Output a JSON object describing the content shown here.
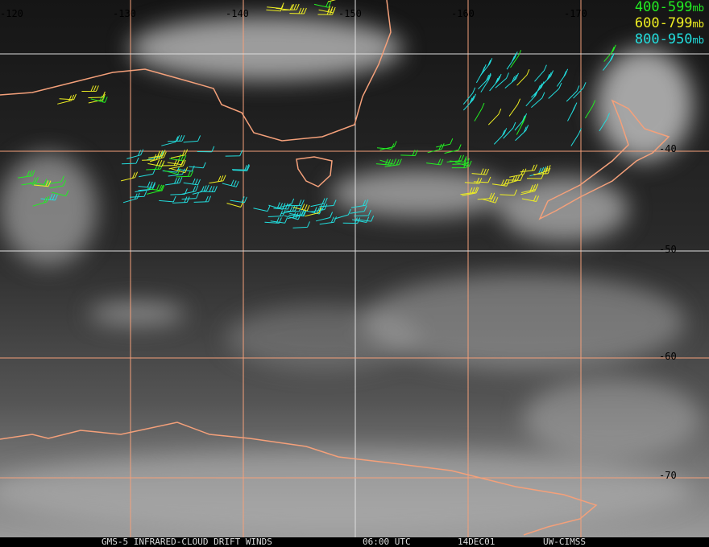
{
  "legend": [
    {
      "range": "400-599",
      "unit": "mb",
      "color": "#22ee22"
    },
    {
      "range": "600-799",
      "unit": "mb",
      "color": "#eeee22"
    },
    {
      "range": "800-950",
      "unit": "mb",
      "color": "#22dddd"
    }
  ],
  "longitude_labels": [
    "-120",
    "-130",
    "-140",
    "-150",
    "-160",
    "-170"
  ],
  "latitude_labels": [
    "-40",
    "-50",
    "-60",
    "-70"
  ],
  "footer": {
    "product": "GMS-5 INFRARED-CLOUD DRIFT WINDS",
    "time": "06:00 UTC",
    "date": "14DEC01",
    "source": "UW-CIMSS"
  },
  "colors": {
    "coastline": "#f4a07a",
    "grid_orange": "#f4a07a",
    "grid_white": "#dddddd"
  }
}
